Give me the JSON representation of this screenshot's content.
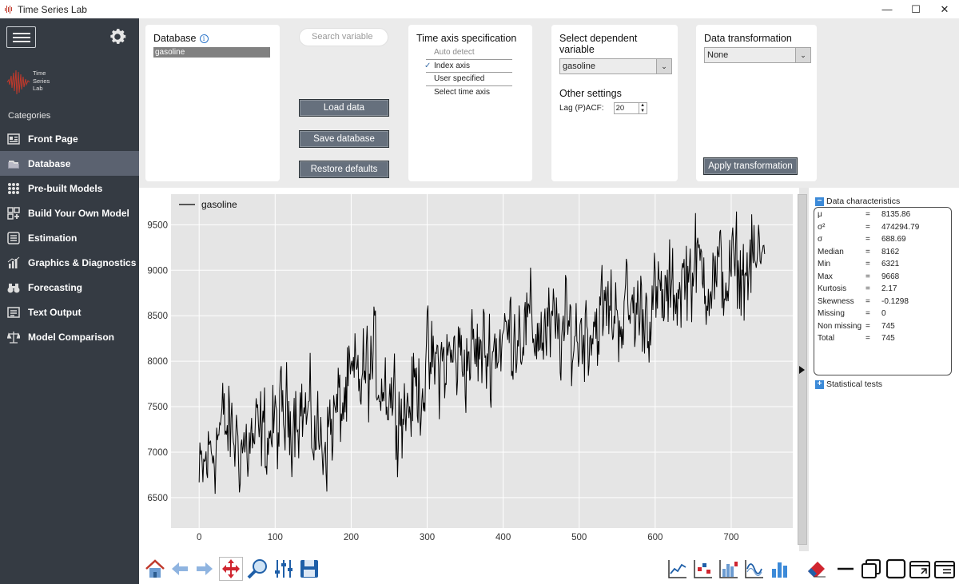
{
  "window": {
    "title": "Time Series Lab",
    "controls": [
      "—",
      "☐",
      "✕"
    ]
  },
  "sidebar": {
    "logo_lines": [
      "Time",
      "Series",
      "Lab"
    ],
    "categories_label": "Categories",
    "items": [
      {
        "label": "Front Page",
        "icon": "front-page-icon"
      },
      {
        "label": "Database",
        "icon": "database-icon",
        "active": true
      },
      {
        "label": "Pre-built Models",
        "icon": "grid-icon"
      },
      {
        "label": "Build Your Own Model",
        "icon": "build-model-icon"
      },
      {
        "label": "Estimation",
        "icon": "estimation-icon"
      },
      {
        "label": "Graphics & Diagnostics",
        "icon": "bar-chart-icon"
      },
      {
        "label": "Forecasting",
        "icon": "binoculars-icon"
      },
      {
        "label": "Text Output",
        "icon": "text-output-icon"
      },
      {
        "label": "Model Comparison",
        "icon": "scales-icon"
      }
    ]
  },
  "database": {
    "title": "Database",
    "items": [
      "gasoline"
    ]
  },
  "search": {
    "placeholder": "Search variable"
  },
  "buttons": {
    "load": "Load data",
    "save": "Save database",
    "restore": "Restore defaults",
    "apply": "Apply transformation"
  },
  "time_axis": {
    "title": "Time axis specification",
    "options": [
      "Auto detect",
      "Index axis",
      "User specified",
      "Select time axis"
    ],
    "selected": "Index axis"
  },
  "dependent": {
    "title": "Select dependent variable",
    "value": "gasoline"
  },
  "other_settings": {
    "title": "Other settings",
    "lag_label": "Lag (P)ACF:",
    "lag_value": "20"
  },
  "transformation": {
    "title": "Data transformation",
    "value": "None"
  },
  "chart_data": {
    "type": "line",
    "series": [
      {
        "name": "gasoline",
        "color": "#000000"
      }
    ],
    "x_range": [
      0,
      744
    ],
    "xlim": [
      -37,
      781
    ],
    "ylim": [
      6165,
      9837
    ],
    "xticks": [
      0,
      100,
      200,
      300,
      400,
      500,
      600,
      700
    ],
    "yticks": [
      6500,
      7000,
      7500,
      8000,
      8500,
      9000,
      9500
    ],
    "legend": "top-left",
    "grid": true,
    "background": "#e5e5e5",
    "min_value": 6321,
    "max_value": 9668,
    "trend": [
      [
        0,
        6620
      ],
      [
        10,
        6900
      ],
      [
        30,
        7300
      ],
      [
        60,
        7050
      ],
      [
        100,
        7250
      ],
      [
        130,
        7550
      ],
      [
        160,
        7100
      ],
      [
        200,
        7700
      ],
      [
        230,
        7950
      ],
      [
        270,
        7450
      ],
      [
        300,
        7900
      ],
      [
        340,
        8050
      ],
      [
        380,
        8100
      ],
      [
        420,
        8400
      ],
      [
        460,
        8300
      ],
      [
        500,
        8300
      ],
      [
        540,
        8550
      ],
      [
        580,
        8550
      ],
      [
        620,
        8700
      ],
      [
        650,
        9050
      ],
      [
        680,
        8900
      ],
      [
        720,
        9000
      ],
      [
        744,
        9150
      ]
    ]
  },
  "stats": {
    "header": "Data characteristics",
    "rows": [
      {
        "key": "μ",
        "value": "8135.86"
      },
      {
        "key": "σ²",
        "value": "474294.79"
      },
      {
        "key": "σ",
        "value": "688.69"
      },
      {
        "key": "Median",
        "value": "8162"
      },
      {
        "key": "Min",
        "value": "6321"
      },
      {
        "key": "Max",
        "value": "9668"
      },
      {
        "key": "Kurtosis",
        "value": "2.17"
      },
      {
        "key": "Skewness",
        "value": "-0.1298"
      },
      {
        "key": "Missing",
        "value": "0"
      },
      {
        "key": "Non missing",
        "value": "745"
      },
      {
        "key": "Total",
        "value": "745"
      }
    ],
    "eq": "=",
    "tests_header": "Statistical tests"
  },
  "toolbar": {
    "left": [
      "home-icon",
      "back-arrow-icon",
      "forward-arrow-icon",
      "pan-icon",
      "zoom-icon",
      "sliders-icon",
      "save-icon"
    ],
    "right": [
      "line-plot-icon",
      "scatter-plot-icon",
      "histogram-icon",
      "spectrum-icon",
      "bar-plot-icon",
      "eraser-icon",
      "minimize-icon",
      "cascade-icon",
      "maximize-icon",
      "restore-window-icon",
      "close-window-icon"
    ]
  },
  "colors": {
    "sidebar": "#353b43",
    "active_item": "#5b6270",
    "button": "#66707d",
    "accent": "#3c8ad8"
  }
}
